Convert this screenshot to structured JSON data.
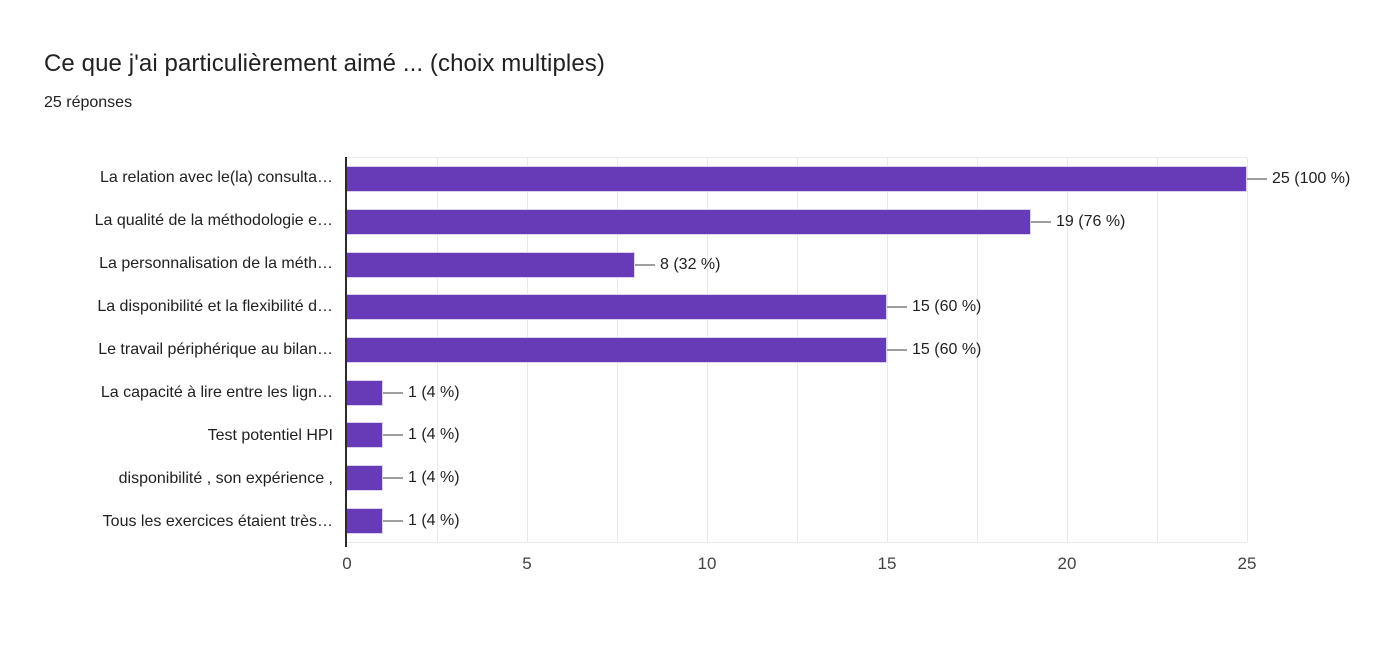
{
  "header": {
    "title": "Ce que j'ai particulièrement aimé ... (choix multiples)",
    "subtitle": "25 réponses"
  },
  "chart_data": {
    "type": "bar",
    "orientation": "horizontal",
    "title": "Ce que j'ai particulièrement aimé ... (choix multiples)",
    "subtitle": "25 réponses",
    "total_responses": 25,
    "categories": [
      "La relation avec le(la) consulta…",
      "La qualité de la méthodologie e…",
      "La personnalisation de la méth…",
      "La disponibilité et la flexibilité d…",
      "Le travail périphérique au bilan…",
      "La capacité à lire entre les lign…",
      "Test potentiel HPI",
      "disponibilité , son expérience ,",
      "Tous les exercices étaient très…"
    ],
    "values": [
      25,
      19,
      8,
      15,
      15,
      1,
      1,
      1,
      1
    ],
    "percentages": [
      100,
      76,
      32,
      60,
      60,
      4,
      4,
      4,
      4
    ],
    "value_labels": [
      "25 (100 %)",
      "19 (76 %)",
      "8 (32 %)",
      "15 (60 %)",
      "15 (60 %)",
      "1 (4 %)",
      "1 (4 %)",
      "1 (4 %)",
      "1 (4 %)"
    ],
    "x_ticks": [
      "0",
      "5",
      "10",
      "15",
      "20",
      "25"
    ],
    "xlim": [
      0,
      25
    ],
    "gridline_interval": 2.5,
    "legend_position": "none",
    "grid": "vertical-light",
    "colors": {
      "bar_fill": "#673ab7",
      "bar_stroke": "#d9d2ec",
      "gridline": "#e9e9e9",
      "axis_line": "#2b2b2b",
      "leader_line": "#9e9e9e",
      "text": "#212121",
      "tick_text": "#424242",
      "background": "#ffffff"
    }
  }
}
